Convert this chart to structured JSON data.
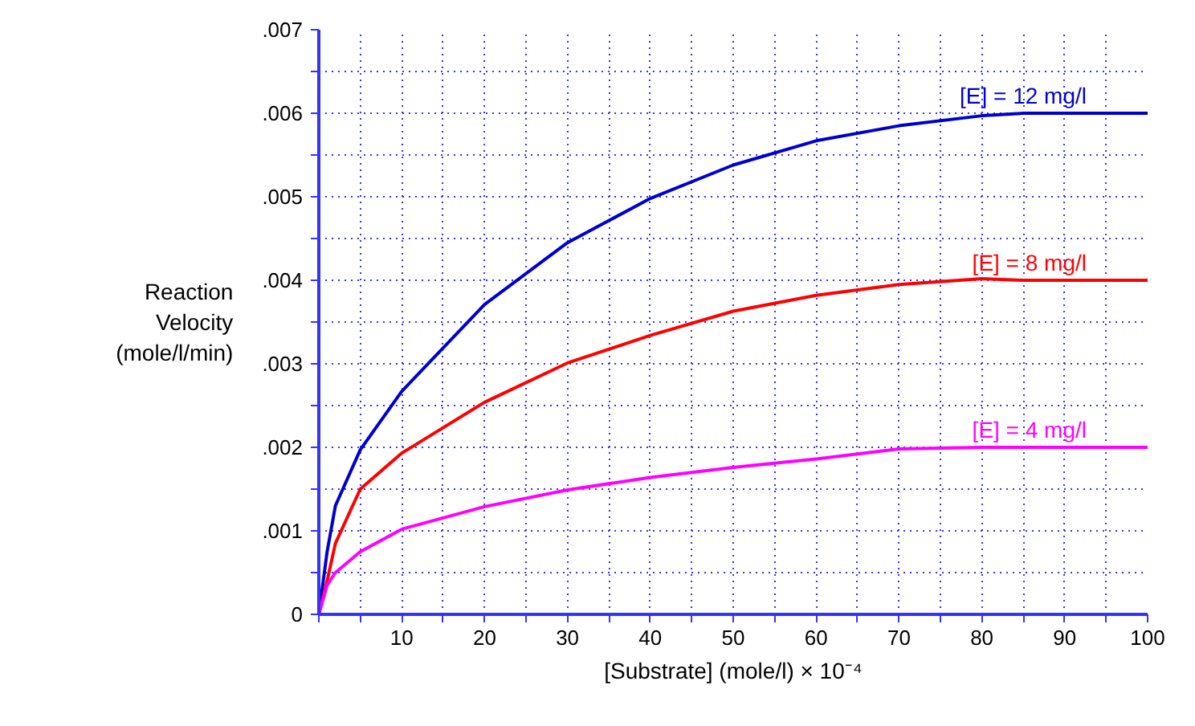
{
  "chart_data": {
    "type": "line",
    "xlabel": "[Substrate] (mole/l) × 10⁻⁴",
    "ylabel": "Reaction\nVelocity\n(mole/l/min)",
    "x": [
      0,
      1,
      2,
      5,
      10,
      20,
      30,
      40,
      50,
      60,
      70,
      80,
      85,
      90,
      100
    ],
    "series": [
      {
        "name": "[E] = 12 mg/l",
        "color": "#0000cc",
        "values": [
          0,
          0.00075,
          0.0013,
          0.00197,
          0.00267,
          0.00371,
          0.00445,
          0.00498,
          0.00538,
          0.00567,
          0.00585,
          0.00597,
          0.006,
          0.006,
          0.006
        ]
      },
      {
        "name": "[E] = 8 mg/l",
        "color": "#ff0000",
        "values": [
          0,
          0.0004,
          0.00085,
          0.0015,
          0.00193,
          0.00254,
          0.00301,
          0.00334,
          0.00363,
          0.00382,
          0.00395,
          0.00402,
          0.004,
          0.004,
          0.004
        ]
      },
      {
        "name": "[E] = 4 mg/l",
        "color": "#ff00ff",
        "values": [
          0,
          0.00035,
          0.0005,
          0.00075,
          0.00102,
          0.00129,
          0.00149,
          0.00164,
          0.00176,
          0.00186,
          0.00198,
          0.002,
          0.002,
          0.002,
          0.002
        ]
      }
    ],
    "xlim": [
      0,
      100
    ],
    "ylim": [
      0,
      0.007
    ],
    "xticks": [
      {
        "value": 0,
        "label": null
      },
      {
        "value": 5,
        "label": null
      },
      10,
      {
        "value": 15,
        "label": null
      },
      20,
      {
        "value": 25,
        "label": null
      },
      30,
      {
        "value": 35,
        "label": null
      },
      40,
      {
        "value": 45,
        "label": null
      },
      50,
      {
        "value": 55,
        "label": null
      },
      60,
      {
        "value": 65,
        "label": null
      },
      70,
      {
        "value": 75,
        "label": null
      },
      80,
      {
        "value": 85,
        "label": null
      },
      90,
      {
        "value": 95,
        "label": null
      },
      100
    ],
    "yticks": [
      0,
      {
        "value": 0.0005,
        "label": null
      },
      {
        "value": 0.001,
        "label": ".001"
      },
      {
        "value": 0.0015,
        "label": null
      },
      {
        "value": 0.002,
        "label": ".002"
      },
      {
        "value": 0.0025,
        "label": null
      },
      {
        "value": 0.003,
        "label": ".003"
      },
      {
        "value": 0.0035,
        "label": null
      },
      {
        "value": 0.004,
        "label": ".004"
      },
      {
        "value": 0.0045,
        "label": null
      },
      {
        "value": 0.005,
        "label": ".005"
      },
      {
        "value": 0.0055,
        "label": null
      },
      {
        "value": 0.006,
        "label": ".006"
      },
      {
        "value": 0.0065,
        "label": null
      },
      {
        "value": 0.007,
        "label": ".007"
      }
    ],
    "grid": true,
    "marker": "none",
    "line_style": "solid"
  }
}
